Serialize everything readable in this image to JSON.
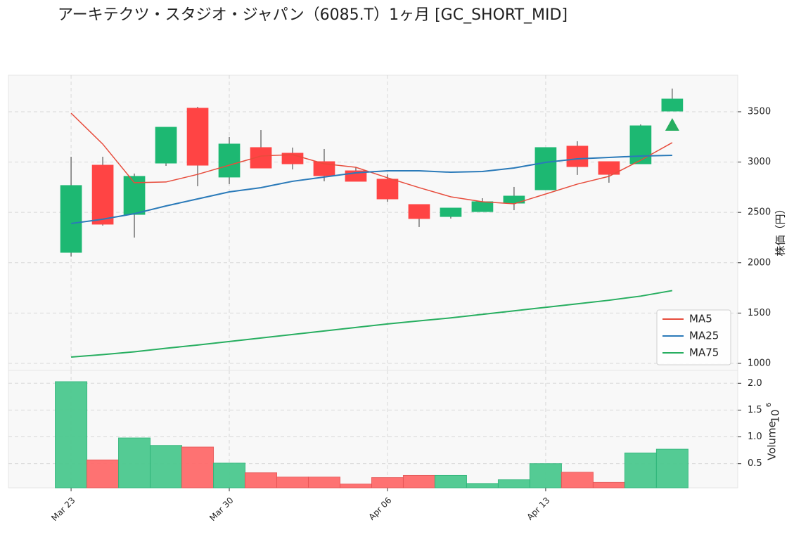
{
  "chart_data": {
    "type": "candlestick",
    "title": "アーキテクツ・スタジオ・ジャパン（6085.T）1ヶ月 [GC_SHORT_MID]",
    "categories": [
      "Mar 23",
      null,
      null,
      null,
      null,
      "Mar 30",
      null,
      null,
      null,
      null,
      "Apr 06",
      null,
      null,
      null,
      null,
      "Apr 13",
      null,
      null,
      null,
      null
    ],
    "open": [
      2103,
      2969,
      2480,
      2990,
      3535,
      2851,
      3144,
      3088,
      3004,
      2913,
      2830,
      2578,
      2459,
      2508,
      2592,
      2725,
      3158,
      3004,
      2983,
      3507
    ],
    "high": [
      3053,
      3053,
      2886,
      3346,
      3549,
      3249,
      3318,
      3144,
      3130,
      2948,
      2878,
      2578,
      2543,
      2641,
      2753,
      3144,
      3207,
      3004,
      3374,
      3730
    ],
    "low": [
      2061,
      2369,
      2250,
      2962,
      2760,
      2781,
      2941,
      2927,
      2809,
      2809,
      2606,
      2355,
      2439,
      2508,
      2522,
      2725,
      2872,
      2795,
      2983,
      3507
    ],
    "close": [
      2767,
      2383,
      2858,
      3346,
      2969,
      3179,
      2941,
      2983,
      2865,
      2809,
      2634,
      2439,
      2543,
      2606,
      2662,
      3144,
      2955,
      2878,
      3360,
      3626
    ],
    "up_color": "#1db872",
    "down_color": "#ff4444",
    "ylabel": "株価（円）",
    "xlim": [
      -1.98,
      21.07
    ],
    "ylim": [
      930,
      3863
    ],
    "yticks": [
      1000,
      1500,
      2000,
      2500,
      3000,
      3500
    ],
    "grid": true,
    "legend": "lower right",
    "series": [
      {
        "name": "MA5",
        "color": "#e74c3c",
        "values": [
          3486,
          3179,
          2795,
          2802,
          2878,
          2969,
          3060,
          3074,
          2983,
          2948,
          2844,
          2746,
          2655,
          2606,
          2585,
          2683,
          2781,
          2858,
          3018,
          3193
        ]
      },
      {
        "name": "MA25",
        "color": "#2a7ab9",
        "values": [
          2390,
          2432,
          2487,
          2564,
          2634,
          2704,
          2746,
          2809,
          2851,
          2893,
          2913,
          2913,
          2899,
          2906,
          2941,
          2997,
          3032,
          3046,
          3060,
          3067
        ]
      },
      {
        "name": "MA75",
        "color": "#27ae60",
        "values": [
          1063,
          1087,
          1115,
          1150,
          1182,
          1217,
          1252,
          1287,
          1322,
          1357,
          1392,
          1422,
          1452,
          1487,
          1522,
          1557,
          1592,
          1627,
          1668,
          1723
        ]
      }
    ],
    "signal": {
      "color": "#27ae60",
      "values": [
        null,
        null,
        null,
        null,
        null,
        null,
        null,
        null,
        null,
        null,
        null,
        null,
        null,
        null,
        null,
        null,
        null,
        null,
        null,
        3374
      ]
    },
    "volume": {
      "ylabel": "Volume",
      "offset_base": "10",
      "offset_exponent": "6",
      "up_color": "#4cc98f",
      "down_color": "#ff6b6b",
      "values": [
        2.03,
        0.57,
        0.98,
        0.84,
        0.81,
        0.51,
        0.33,
        0.25,
        0.25,
        0.12,
        0.24,
        0.28,
        0.28,
        0.13,
        0.2,
        0.5,
        0.34,
        0.15,
        0.7,
        0.77
      ],
      "ylim": [
        0.05,
        2.24
      ],
      "yticks": [
        0.5,
        {
          "value": 1,
          "label": "1.0"
        },
        1.5,
        {
          "value": 2,
          "label": "2.0"
        }
      ]
    }
  }
}
